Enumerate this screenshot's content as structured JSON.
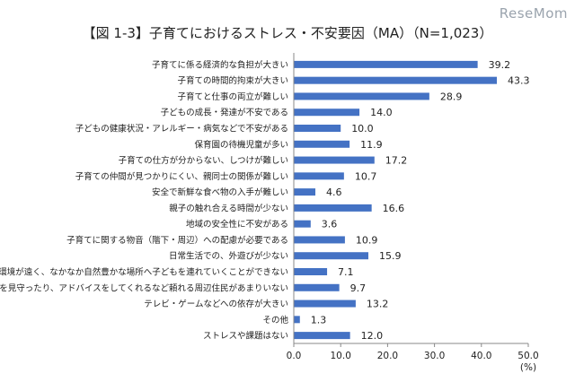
{
  "header": {
    "title": "【図 1-3】子育てにおけるストレス・不安要因（MA）（N=1,023）",
    "watermark": "ReseMom"
  },
  "chart_data": {
    "type": "bar",
    "orientation": "horizontal",
    "title": "【図 1-3】子育てにおけるストレス・不安要因（MA）（N=1,023）",
    "categories": [
      "子育てに係る経済的な負担が大きい",
      "子育ての時間的拘束が大きい",
      "子育てと仕事の両立が難しい",
      "子どもの成長・発達が不安である",
      "子どもの健康状況・アレルギー・病気などで不安がある",
      "保育園の待機児童が多い",
      "子育ての仕方が分からない、しつけが難しい",
      "子育ての仲間が見つかりにくい、親同士の関係が難しい",
      "安全で新鮮な食べ物の入手が難しい",
      "親子の触れ合える時間が少ない",
      "地域の安全性に不安がある",
      "子育てに関する物音（階下・周辺）への配慮が必要である",
      "日常生活での、外遊びが少ない",
      "自然環境が遠く、なかなか自然豊かな場所へ子どもを連れていくことができない",
      "子育てを見守ったり、アドバイスをしてくれるなど頼れる周辺住民があまりいない",
      "テレビ・ゲームなどへの依存が大きい",
      "その他",
      "ストレスや課題はない"
    ],
    "values": [
      39.2,
      43.3,
      28.9,
      14.0,
      10.0,
      11.9,
      17.2,
      10.7,
      4.6,
      16.6,
      3.6,
      10.9,
      15.9,
      7.1,
      9.7,
      13.2,
      1.3,
      12.0
    ],
    "value_labels": [
      "39.2",
      "43.3",
      "28.9",
      "14.0",
      "10.0",
      "11.9",
      "17.2",
      "10.7",
      "4.6",
      "16.6",
      "3.6",
      "10.9",
      "15.9",
      "7.1",
      "9.7",
      "13.2",
      "1.3",
      "12.0"
    ],
    "xlim": [
      0,
      50
    ],
    "xticks": [
      "0.0",
      "10.0",
      "20.0",
      "30.0",
      "40.0",
      "50.0"
    ],
    "xunit": "(%)",
    "bar_color": "#4472c4",
    "grid": false
  }
}
